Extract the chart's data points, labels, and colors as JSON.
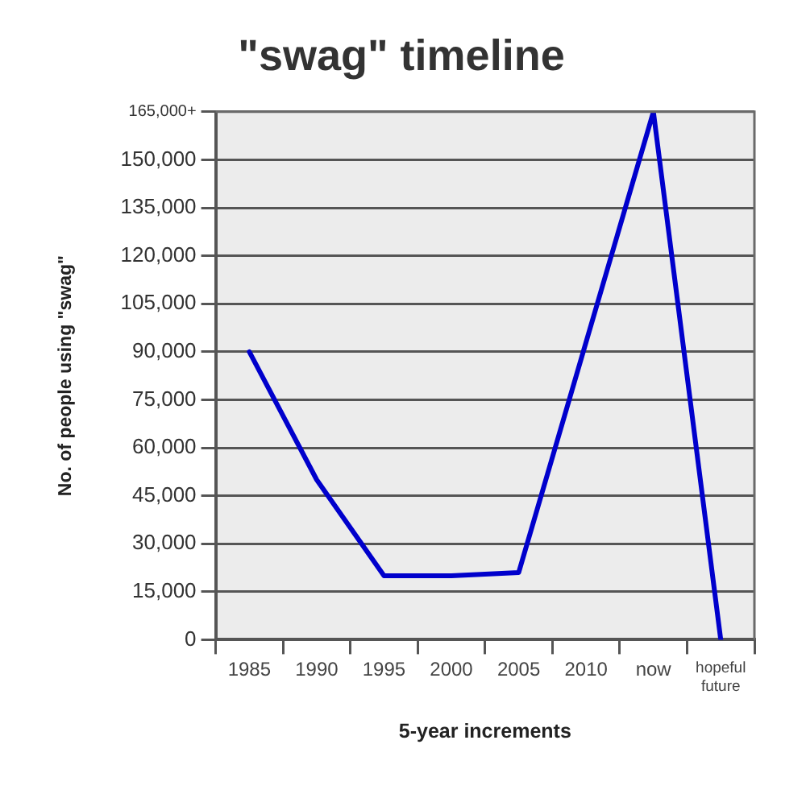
{
  "chart_data": {
    "type": "line",
    "title": "\"swag\" timeline",
    "xlabel": "5-year increments",
    "ylabel": "No. of people using \"swag\"",
    "categories": [
      "1985",
      "1990",
      "1995",
      "2000",
      "2005",
      "2010",
      "now",
      "hopeful future"
    ],
    "series": [
      {
        "color": "#0000cc",
        "values": [
          90000,
          50000,
          20000,
          20000,
          21000,
          93000,
          165000,
          0
        ]
      }
    ],
    "ylim": [
      0,
      165000
    ],
    "yticks": [
      {
        "value": 0,
        "label": "0"
      },
      {
        "value": 15000,
        "label": "15,000"
      },
      {
        "value": 30000,
        "label": "30,000"
      },
      {
        "value": 45000,
        "label": "45,000"
      },
      {
        "value": 60000,
        "label": "60,000"
      },
      {
        "value": 75000,
        "label": "75,000"
      },
      {
        "value": 90000,
        "label": "90,000"
      },
      {
        "value": 105000,
        "label": "105,000"
      },
      {
        "value": 120000,
        "label": "120,000"
      },
      {
        "value": 135000,
        "label": "135,000"
      },
      {
        "value": 150000,
        "label": "150,000"
      },
      {
        "value": 165000,
        "label": "165,000+"
      }
    ],
    "grid": "y",
    "marker": "none"
  }
}
